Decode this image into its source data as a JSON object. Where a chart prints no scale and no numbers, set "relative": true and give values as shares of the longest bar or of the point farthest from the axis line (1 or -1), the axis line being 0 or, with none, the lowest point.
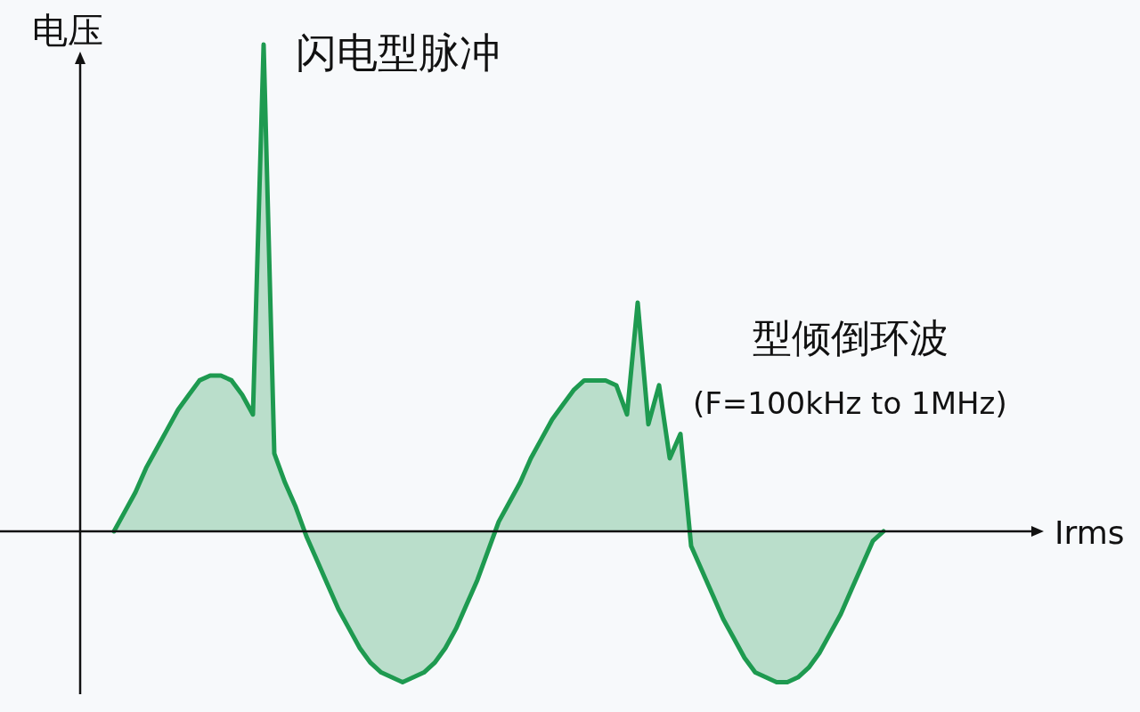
{
  "chart_data": {
    "type": "area",
    "relative": true,
    "ylabel": "电压",
    "annotations": [
      "闪电型脉冲",
      "型倾倒环波",
      "(F=100kHz to 1MHz)",
      "Irms"
    ],
    "categories": [
      null,
      null,
      null,
      null,
      null,
      null,
      null,
      null,
      null,
      null,
      null,
      null,
      null,
      null,
      null,
      null,
      null,
      null,
      null,
      null,
      null,
      null,
      null,
      null,
      null,
      null,
      null,
      null,
      null,
      null,
      null,
      null,
      null,
      null,
      null,
      null,
      null,
      null,
      null,
      null,
      null,
      null,
      null,
      null,
      null,
      null,
      null,
      null,
      null,
      null,
      null,
      null,
      null,
      null,
      null,
      null,
      null,
      null,
      null,
      null,
      null,
      null,
      null,
      null,
      null,
      null,
      null,
      null,
      null,
      null,
      null,
      null,
      null
    ],
    "series": [
      {
        "color": "#1e9a50",
        "values": [
          0,
          0.04,
          0.08,
          0.13,
          0.17,
          0.21,
          0.25,
          0.28,
          0.31,
          0.32,
          0.32,
          0.31,
          0.28,
          0.24,
          1.0,
          0.16,
          0.1,
          0.05,
          -0.01,
          -0.06,
          -0.11,
          -0.16,
          -0.2,
          -0.24,
          -0.27,
          -0.29,
          -0.3,
          -0.31,
          -0.3,
          -0.29,
          -0.27,
          -0.24,
          -0.2,
          -0.15,
          -0.1,
          -0.04,
          0.02,
          0.06,
          0.1,
          0.15,
          0.19,
          0.23,
          0.26,
          0.29,
          0.31,
          0.31,
          0.31,
          0.3,
          0.24,
          0.47,
          0.22,
          0.3,
          0.15,
          0.2,
          -0.03,
          -0.08,
          -0.13,
          -0.18,
          -0.22,
          -0.26,
          -0.29,
          -0.3,
          -0.31,
          -0.31,
          -0.3,
          -0.28,
          -0.25,
          -0.21,
          -0.17,
          -0.12,
          -0.07,
          -0.02,
          0
        ]
      }
    ]
  }
}
